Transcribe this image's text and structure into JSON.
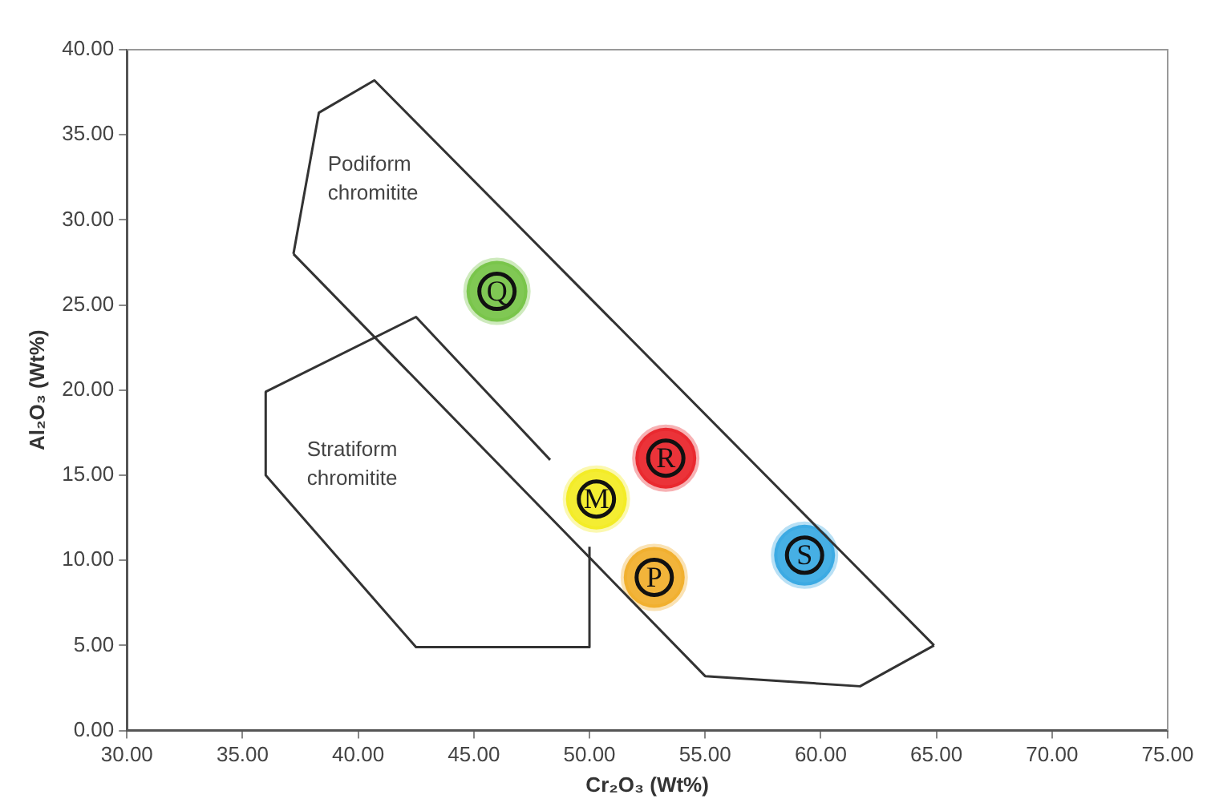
{
  "chart_data": {
    "type": "scatter",
    "xlabel": "Cr₂O₃ (Wt%)",
    "ylabel": "Al₂O₃ (Wt%)",
    "xlim": [
      30,
      75
    ],
    "ylim": [
      0,
      40
    ],
    "xticks": [
      {
        "value": 30,
        "label": "30.00"
      },
      {
        "value": 35,
        "label": "35.00"
      },
      {
        "value": 40,
        "label": "40.00"
      },
      {
        "value": 45,
        "label": "45.00"
      },
      {
        "value": 50,
        "label": "50.00"
      },
      {
        "value": 55,
        "label": "55.00"
      },
      {
        "value": 60,
        "label": "60.00"
      },
      {
        "value": 65,
        "label": "65.00"
      },
      {
        "value": 70,
        "label": "70.00"
      },
      {
        "value": 75,
        "label": "75.00"
      }
    ],
    "yticks": [
      {
        "value": 0,
        "label": "0.00"
      },
      {
        "value": 5,
        "label": "5.00"
      },
      {
        "value": 10,
        "label": "10.00"
      },
      {
        "value": 15,
        "label": "15.00"
      },
      {
        "value": 20,
        "label": "20.00"
      },
      {
        "value": 25,
        "label": "25.00"
      },
      {
        "value": 30,
        "label": "30.00"
      },
      {
        "value": 35,
        "label": "35.00"
      },
      {
        "value": 40,
        "label": "40.00"
      }
    ],
    "grid": false,
    "legend": false,
    "annotations": [
      "Podiform\nchromitite",
      "Stratiform\nchromitite"
    ],
    "series": [
      {
        "type": "line",
        "color": "#333333",
        "marker": "none",
        "x": [
          37.2,
          38.3,
          40.7,
          64.9
        ],
        "values": [
          28.0,
          36.3,
          38.2,
          5.0
        ]
      },
      {
        "type": "line",
        "color": "#333333",
        "marker": "none",
        "x": [
          37.2,
          55.0,
          61.7,
          64.9
        ],
        "values": [
          28.0,
          3.2,
          2.6,
          5.0
        ]
      },
      {
        "type": "line",
        "color": "#333333",
        "marker": "none",
        "x": [
          36.0,
          42.5,
          48.3
        ],
        "values": [
          19.9,
          24.3,
          15.9
        ]
      },
      {
        "type": "line",
        "color": "#333333",
        "marker": "none",
        "x": [
          36.0,
          36.0,
          42.5,
          50.0,
          50.0
        ],
        "values": [
          19.9,
          15.0,
          4.9,
          4.9,
          10.8
        ]
      },
      {
        "type": "scatter",
        "name": "Q",
        "color": "#6cbf3a",
        "x": [
          46.0
        ],
        "values": [
          25.8
        ]
      },
      {
        "type": "scatter",
        "name": "R",
        "color": "#e8141b",
        "x": [
          53.3
        ],
        "values": [
          16.0
        ]
      },
      {
        "type": "scatter",
        "name": "M",
        "color": "#f2ea12",
        "x": [
          50.3
        ],
        "values": [
          13.6
        ]
      },
      {
        "type": "scatter",
        "name": "P",
        "color": "#f0a81c",
        "x": [
          52.8
        ],
        "values": [
          9.0
        ]
      },
      {
        "type": "scatter",
        "name": "S",
        "color": "#29a3e0",
        "x": [
          59.3
        ],
        "values": [
          10.3
        ]
      }
    ]
  }
}
